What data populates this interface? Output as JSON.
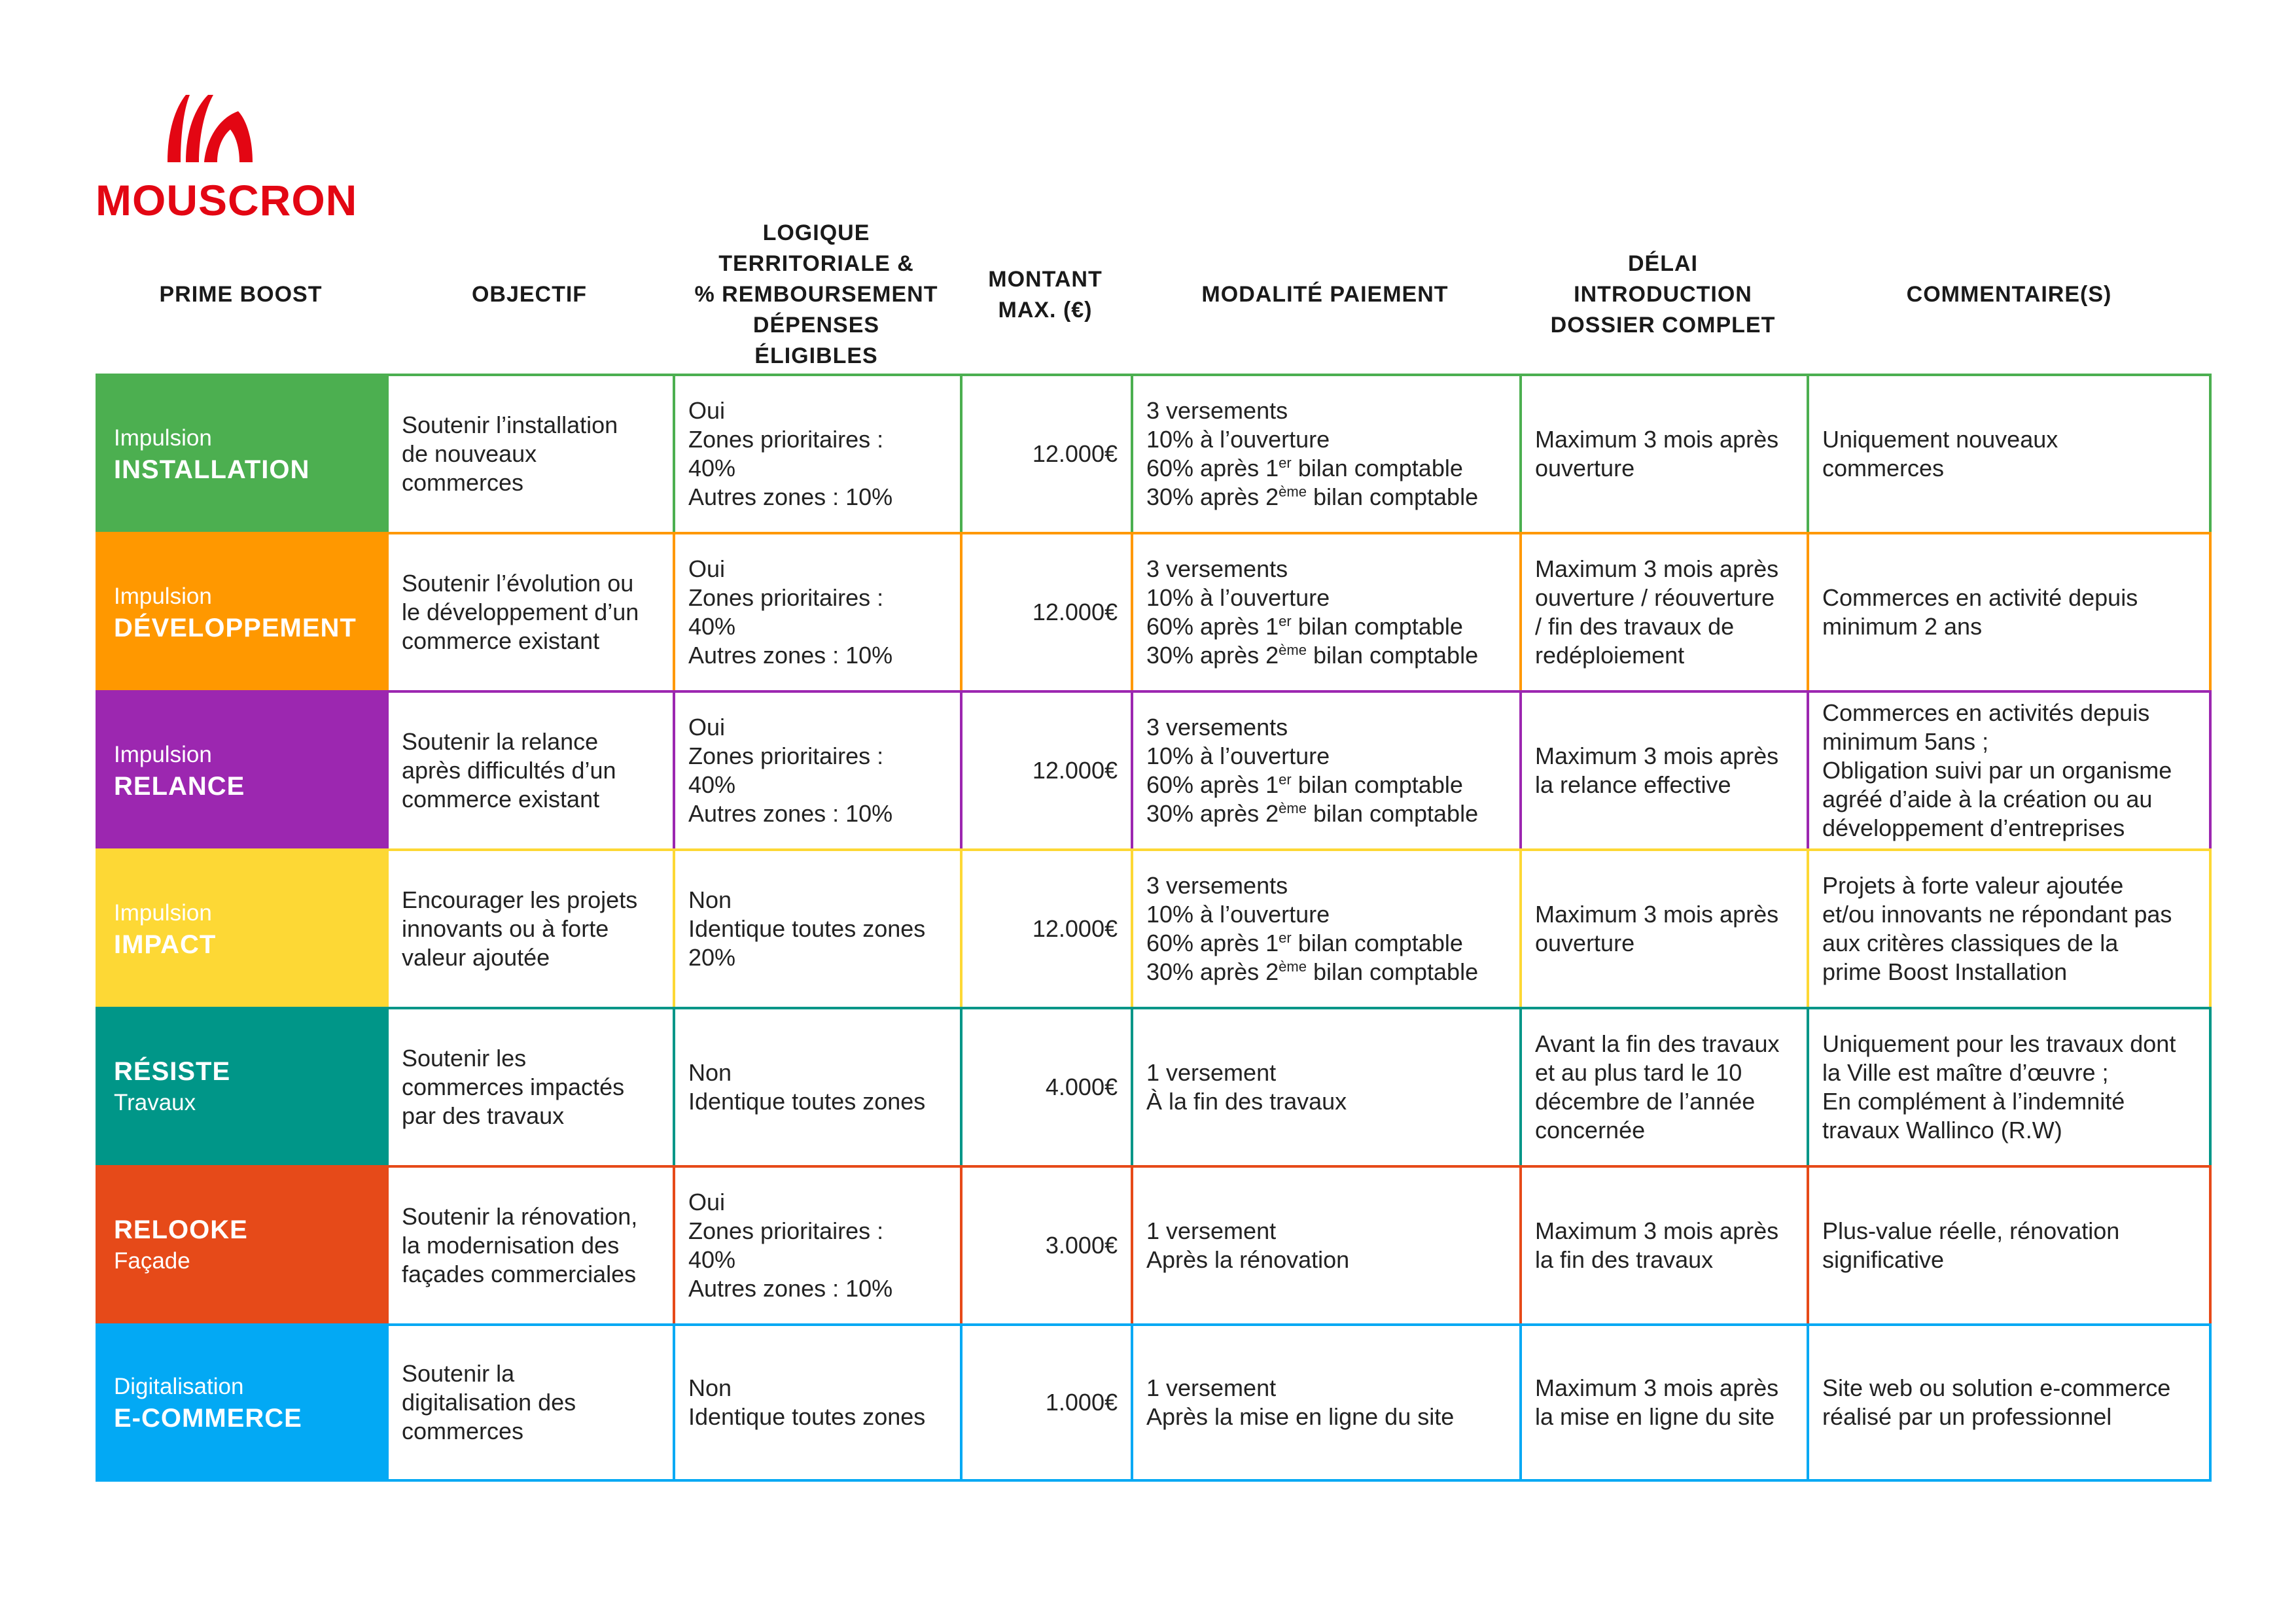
{
  "logo": {
    "text": "MOUSCRON",
    "color": "#E30613"
  },
  "headers": [
    [
      "PRIME BOOST"
    ],
    [
      "OBJECTIF"
    ],
    [
      "LOGIQUE",
      "TERRITORIALE &",
      "% REMBOURSEMENT",
      "DÉPENSES",
      "ÉLIGIBLES"
    ],
    [
      "MONTANT",
      "MAX. (€)"
    ],
    [
      "MODALITÉ PAIEMENT"
    ],
    [
      "DÉLAI",
      "INTRODUCTION",
      "DOSSIER COMPLET"
    ],
    [
      "COMMENTAIRE(S)"
    ]
  ],
  "rows": [
    {
      "color": "#4CAF50",
      "name": [
        {
          "t": "Impulsion",
          "s": "n"
        },
        {
          "t": "INSTALLATION",
          "s": "b"
        }
      ],
      "objective": [
        "Soutenir l’installation",
        "de nouveaux",
        "commerces"
      ],
      "logic": [
        "Oui",
        "Zones prioritaires :",
        "40%",
        "Autres zones : 10%"
      ],
      "amount": "12.000€",
      "payment": [
        {
          "t": "3 versements"
        },
        {
          "t": "10% à l’ouverture"
        },
        {
          "t": "60% après 1",
          "sup": "er",
          "rest": " bilan comptable"
        },
        {
          "t": "30% après 2",
          "sup": "ème",
          "rest": " bilan comptable"
        }
      ],
      "delay": [
        "Maximum 3 mois après",
        "ouverture"
      ],
      "comment": [
        "Uniquement nouveaux",
        "commerces"
      ]
    },
    {
      "color": "#FF9800",
      "name": [
        {
          "t": "Impulsion",
          "s": "n"
        },
        {
          "t": "DÉVELOPPEMENT",
          "s": "b"
        }
      ],
      "objective": [
        "Soutenir l’évolution ou",
        "le développement d’un",
        "commerce existant"
      ],
      "logic": [
        "Oui",
        "Zones prioritaires :",
        "40%",
        "Autres zones : 10%"
      ],
      "amount": "12.000€",
      "payment": [
        {
          "t": "3 versements"
        },
        {
          "t": "10% à l’ouverture"
        },
        {
          "t": "60% après 1",
          "sup": "er",
          "rest": " bilan comptable"
        },
        {
          "t": "30% après 2",
          "sup": "ème",
          "rest": " bilan comptable"
        }
      ],
      "delay": [
        "Maximum 3 mois après",
        "ouverture / réouverture",
        "/ fin des travaux de",
        "redéploiement"
      ],
      "comment": [
        "Commerces en activité depuis",
        "minimum 2 ans"
      ]
    },
    {
      "color": "#9C27B0",
      "name": [
        {
          "t": "Impulsion",
          "s": "n"
        },
        {
          "t": "RELANCE",
          "s": "b"
        }
      ],
      "objective": [
        "Soutenir la relance",
        "après difficultés d’un",
        "commerce existant"
      ],
      "logic": [
        "Oui",
        "Zones prioritaires :",
        "40%",
        "Autres zones : 10%"
      ],
      "amount": "12.000€",
      "payment": [
        {
          "t": "3 versements"
        },
        {
          "t": "10% à l’ouverture"
        },
        {
          "t": "60% après 1",
          "sup": "er",
          "rest": " bilan comptable"
        },
        {
          "t": "30% après 2",
          "sup": "ème",
          "rest": " bilan comptable"
        }
      ],
      "delay": [
        "Maximum 3 mois après",
        "la relance effective"
      ],
      "comment": [
        "Commerces en activités depuis",
        "minimum 5ans ;",
        "Obligation suivi par un organisme",
        "agréé d’aide à la création ou au",
        "développement d’entreprises"
      ]
    },
    {
      "color": "#FDD835",
      "name": [
        {
          "t": "Impulsion",
          "s": "n"
        },
        {
          "t": "IMPACT",
          "s": "b"
        }
      ],
      "objective": [
        "Encourager les projets",
        "innovants ou à forte",
        "valeur ajoutée"
      ],
      "logic": [
        "Non",
        "Identique toutes zones",
        "20%"
      ],
      "amount": "12.000€",
      "payment": [
        {
          "t": "3 versements"
        },
        {
          "t": "10% à l’ouverture"
        },
        {
          "t": "60% après 1",
          "sup": "er",
          "rest": " bilan comptable"
        },
        {
          "t": "30% après 2",
          "sup": "ème",
          "rest": " bilan comptable"
        }
      ],
      "delay": [
        "Maximum 3 mois après",
        "ouverture"
      ],
      "comment": [
        "Projets à forte valeur ajoutée",
        "et/ou innovants ne répondant pas",
        "aux critères classiques de la",
        "prime Boost Installation"
      ]
    },
    {
      "color": "#009688",
      "name": [
        {
          "t": "RÉSISTE",
          "s": "b"
        },
        {
          "t": "Travaux",
          "s": "n"
        }
      ],
      "objective": [
        "Soutenir les",
        "commerces impactés",
        "par des travaux"
      ],
      "logic": [
        "Non",
        "Identique toutes zones"
      ],
      "amount": "4.000€",
      "payment": [
        {
          "t": "1 versement"
        },
        {
          "t": "À la fin des travaux"
        }
      ],
      "delay": [
        "Avant la fin des travaux",
        "et au plus tard le 10",
        "décembre de l’année",
        "concernée"
      ],
      "comment": [
        "Uniquement pour les travaux dont",
        "la Ville est maître d’œuvre ;",
        "En complément à l’indemnité",
        "travaux Wallinco (R.W)"
      ]
    },
    {
      "color": "#E64A19",
      "name": [
        {
          "t": "RELOOKE",
          "s": "b"
        },
        {
          "t": "Façade",
          "s": "n"
        }
      ],
      "objective": [
        "Soutenir la rénovation,",
        "la modernisation des",
        "façades commerciales"
      ],
      "logic": [
        "Oui",
        "Zones prioritaires :",
        "40%",
        "Autres zones : 10%"
      ],
      "amount": "3.000€",
      "payment": [
        {
          "t": "1 versement"
        },
        {
          "t": "Après la rénovation"
        }
      ],
      "delay": [
        "Maximum 3 mois après",
        "la fin des travaux"
      ],
      "comment": [
        "Plus-value réelle, rénovation",
        "significative"
      ]
    },
    {
      "color": "#03A9F4",
      "name": [
        {
          "t": "Digitalisation",
          "s": "n"
        },
        {
          "t": "E-COMMERCE",
          "s": "b"
        }
      ],
      "objective": [
        "Soutenir la",
        "digitalisation des",
        "commerces"
      ],
      "logic": [
        "Non",
        "Identique toutes zones"
      ],
      "amount": "1.000€",
      "payment": [
        {
          "t": "1 versement"
        },
        {
          "t": "Après la mise en ligne du site"
        }
      ],
      "delay": [
        "Maximum 3 mois après",
        "la mise en ligne du site"
      ],
      "comment": [
        "Site web ou solution e-commerce",
        "réalisé par un professionnel"
      ]
    }
  ]
}
